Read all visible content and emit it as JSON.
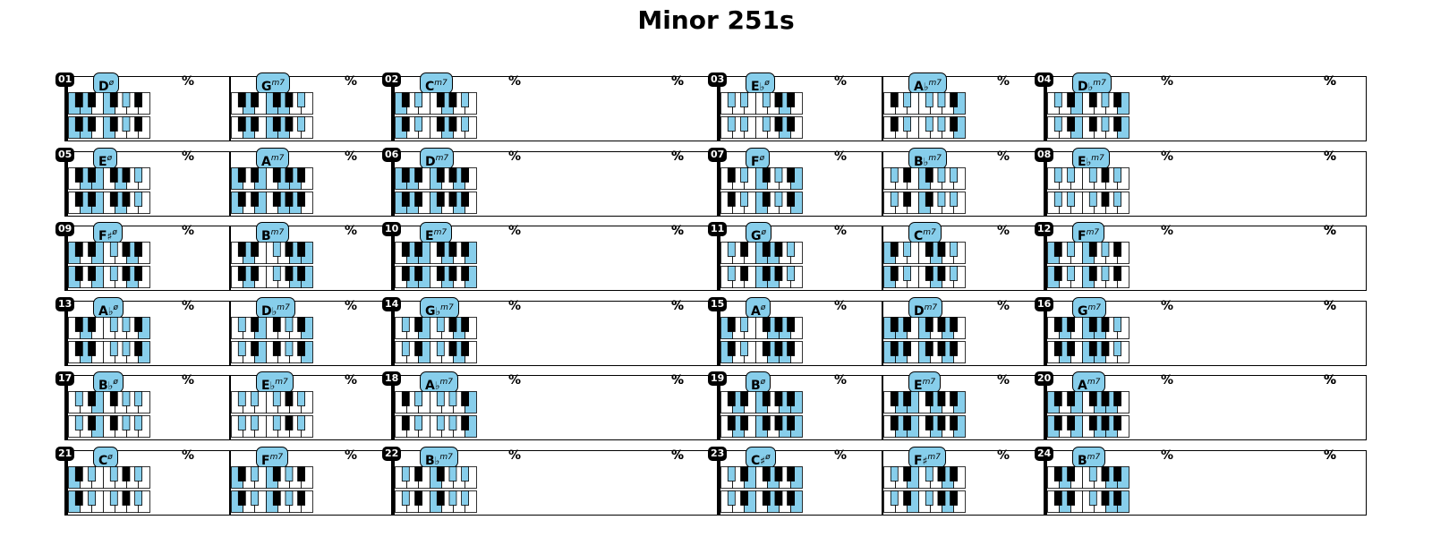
{
  "title": "Minor 251s",
  "repeat_symbol": "%",
  "colors": {
    "highlight": "#87ceeb",
    "outline": "#000000",
    "white_key": "#ffffff",
    "black_key": "#000000"
  },
  "rows": [
    {
      "entries": [
        {
          "number": "01",
          "chords": [
            {
              "root": "D",
              "acc": "",
              "quality": "ø"
            },
            {
              "root": "G",
              "acc": "",
              "quality": "m7"
            }
          ]
        },
        {
          "number": "02",
          "chords": [
            {
              "root": "C",
              "acc": "",
              "quality": "m7"
            }
          ]
        },
        {
          "number": "03",
          "chords": [
            {
              "root": "E",
              "acc": "♭",
              "quality": "ø"
            },
            {
              "root": "A",
              "acc": "♭",
              "quality": "m7"
            }
          ]
        },
        {
          "number": "04",
          "chords": [
            {
              "root": "D",
              "acc": "♭",
              "quality": "m7"
            }
          ]
        }
      ]
    },
    {
      "entries": [
        {
          "number": "05",
          "chords": [
            {
              "root": "E",
              "acc": "",
              "quality": "ø"
            },
            {
              "root": "A",
              "acc": "",
              "quality": "m7"
            }
          ]
        },
        {
          "number": "06",
          "chords": [
            {
              "root": "D",
              "acc": "",
              "quality": "m7"
            }
          ]
        },
        {
          "number": "07",
          "chords": [
            {
              "root": "F",
              "acc": "",
              "quality": "ø"
            },
            {
              "root": "B",
              "acc": "♭",
              "quality": "m7"
            }
          ]
        },
        {
          "number": "08",
          "chords": [
            {
              "root": "E",
              "acc": "♭",
              "quality": "m7"
            }
          ]
        }
      ]
    },
    {
      "entries": [
        {
          "number": "09",
          "chords": [
            {
              "root": "F",
              "acc": "♯",
              "quality": "ø"
            },
            {
              "root": "B",
              "acc": "",
              "quality": "m7"
            }
          ]
        },
        {
          "number": "10",
          "chords": [
            {
              "root": "E",
              "acc": "",
              "quality": "m7"
            }
          ]
        },
        {
          "number": "11",
          "chords": [
            {
              "root": "G",
              "acc": "",
              "quality": "ø"
            },
            {
              "root": "C",
              "acc": "",
              "quality": "m7"
            }
          ]
        },
        {
          "number": "12",
          "chords": [
            {
              "root": "F",
              "acc": "",
              "quality": "m7"
            }
          ]
        }
      ]
    },
    {
      "entries": [
        {
          "number": "13",
          "chords": [
            {
              "root": "A",
              "acc": "♭",
              "quality": "ø"
            },
            {
              "root": "D",
              "acc": "♭",
              "quality": "m7"
            }
          ]
        },
        {
          "number": "14",
          "chords": [
            {
              "root": "G",
              "acc": "♭",
              "quality": "m7"
            }
          ]
        },
        {
          "number": "15",
          "chords": [
            {
              "root": "A",
              "acc": "",
              "quality": "ø"
            },
            {
              "root": "D",
              "acc": "",
              "quality": "m7"
            }
          ]
        },
        {
          "number": "16",
          "chords": [
            {
              "root": "G",
              "acc": "",
              "quality": "m7"
            }
          ]
        }
      ]
    },
    {
      "entries": [
        {
          "number": "17",
          "chords": [
            {
              "root": "B",
              "acc": "♭",
              "quality": "ø"
            },
            {
              "root": "E",
              "acc": "♭",
              "quality": "m7"
            }
          ]
        },
        {
          "number": "18",
          "chords": [
            {
              "root": "A",
              "acc": "♭",
              "quality": "m7"
            }
          ]
        },
        {
          "number": "19",
          "chords": [
            {
              "root": "B",
              "acc": "",
              "quality": "ø"
            },
            {
              "root": "E",
              "acc": "",
              "quality": "m7"
            }
          ]
        },
        {
          "number": "20",
          "chords": [
            {
              "root": "A",
              "acc": "",
              "quality": "m7"
            }
          ]
        }
      ]
    },
    {
      "entries": [
        {
          "number": "21",
          "chords": [
            {
              "root": "C",
              "acc": "",
              "quality": "ø"
            },
            {
              "root": "F",
              "acc": "",
              "quality": "m7"
            }
          ]
        },
        {
          "number": "22",
          "chords": [
            {
              "root": "B",
              "acc": "♭",
              "quality": "m7"
            }
          ]
        },
        {
          "number": "23",
          "chords": [
            {
              "root": "C",
              "acc": "♯",
              "quality": "ø"
            },
            {
              "root": "F",
              "acc": "♯",
              "quality": "m7"
            }
          ]
        },
        {
          "number": "24",
          "chords": [
            {
              "root": "B",
              "acc": "",
              "quality": "m7"
            }
          ]
        }
      ]
    }
  ]
}
